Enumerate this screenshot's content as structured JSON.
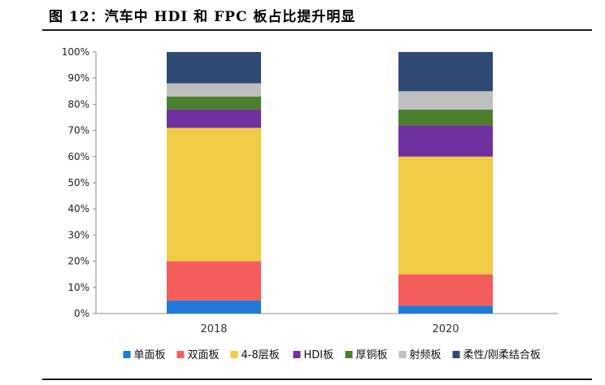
{
  "figure": {
    "title": "图 12：汽车中 HDI 和 FPC 板占比提升明显"
  },
  "chart_data": {
    "type": "bar",
    "stacked": true,
    "categories": [
      "2018",
      "2020"
    ],
    "series": [
      {
        "name": "单面板",
        "color": "#1f7bd8",
        "values": [
          5,
          3
        ]
      },
      {
        "name": "双面板",
        "color": "#f55d5d",
        "values": [
          15,
          12
        ]
      },
      {
        "name": "4-8层板",
        "color": "#f0cc45",
        "values": [
          51,
          45
        ]
      },
      {
        "name": "HDI板",
        "color": "#7030a0",
        "values": [
          7,
          12
        ]
      },
      {
        "name": "厚铜板",
        "color": "#4a7f2e",
        "values": [
          5,
          6
        ]
      },
      {
        "name": "射频板",
        "color": "#bfbfbf",
        "values": [
          5,
          7
        ]
      },
      {
        "name": "柔性/刚柔结合板",
        "color": "#2e4a73",
        "values": [
          12,
          15
        ]
      }
    ],
    "ylim": [
      0,
      100
    ],
    "yticks": [
      "0%",
      "10%",
      "20%",
      "30%",
      "40%",
      "50%",
      "60%",
      "70%",
      "80%",
      "90%",
      "100%"
    ],
    "legend_position": "bottom",
    "grid": false
  }
}
